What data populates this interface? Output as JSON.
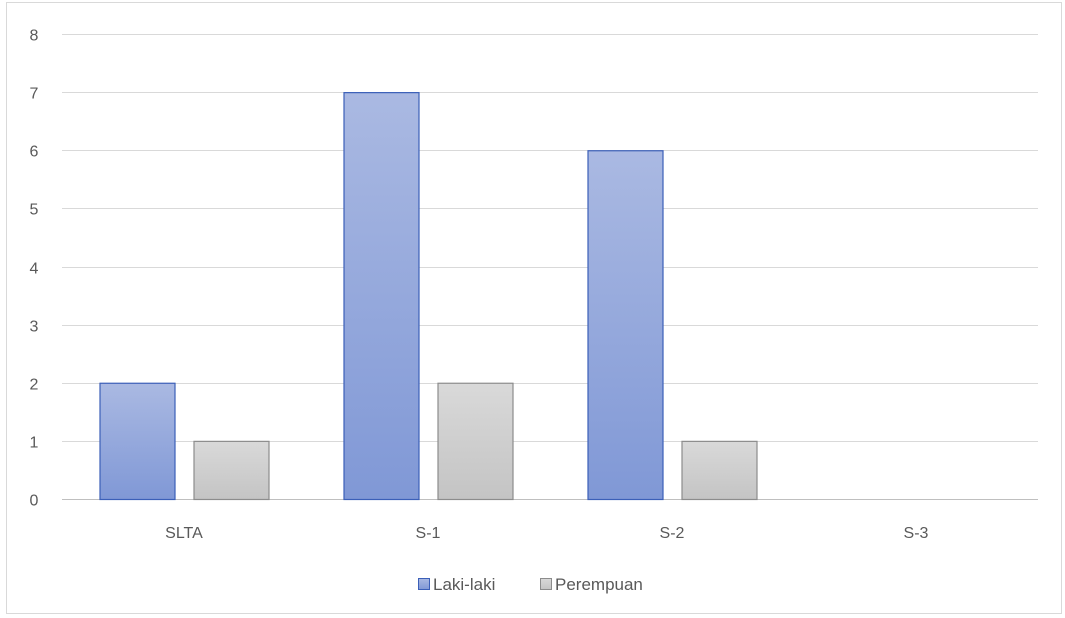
{
  "chart_data": {
    "type": "bar",
    "categories": [
      "SLTA",
      "S-1",
      "S-2",
      "S-3"
    ],
    "series": [
      {
        "name": "Laki-laki",
        "values": [
          2,
          7,
          6,
          0
        ],
        "color": "#8ea3d9",
        "stroke": "#3b5fb8"
      },
      {
        "name": "Perempuan",
        "values": [
          1,
          2,
          1,
          0
        ],
        "color": "#d0d0d0",
        "stroke": "#8c8c8c"
      }
    ],
    "title": "",
    "xlabel": "",
    "ylabel": "",
    "ylim": [
      0,
      8
    ],
    "yticks": [
      "0",
      "1",
      "2",
      "3",
      "4",
      "5",
      "6",
      "7",
      "8"
    ],
    "grid": true,
    "legend_position": "bottom"
  }
}
